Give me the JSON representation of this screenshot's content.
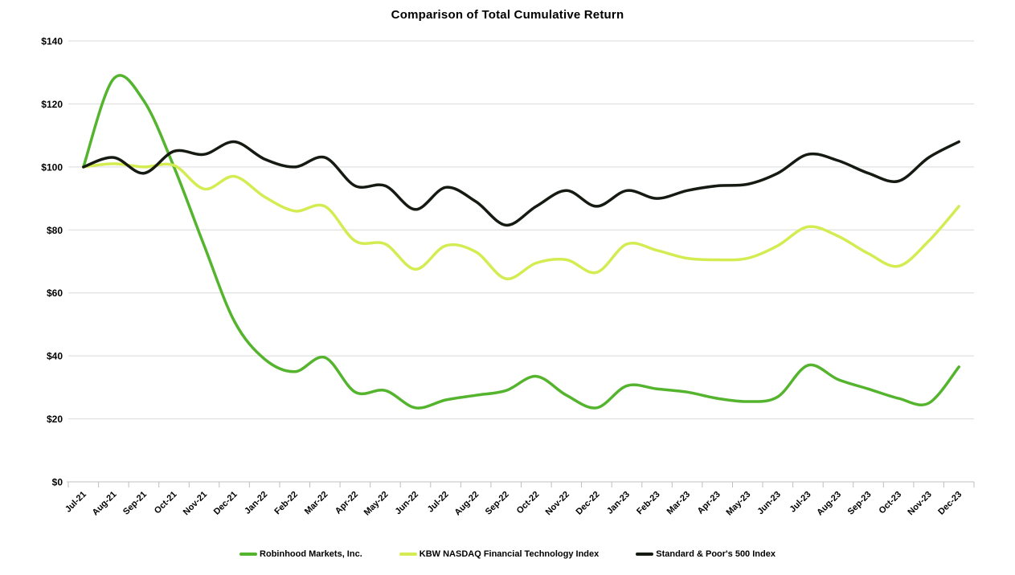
{
  "chart_data": {
    "type": "line",
    "title": "Comparison of Total Cumulative Return",
    "xlabel": "",
    "ylabel": "",
    "ylim": [
      0,
      140
    ],
    "y_tick_step": 20,
    "y_tick_prefix": "$",
    "grid": true,
    "legend_position": "bottom",
    "grid_color": "#d9d9d9",
    "axis_color": "#bfbfbf",
    "text_color": "#000000",
    "categories": [
      "Jul-21",
      "Aug-21",
      "Sep-21",
      "Oct-21",
      "Nov-21",
      "Dec-21",
      "Jan-22",
      "Feb-22",
      "Mar-22",
      "Apr-22",
      "May-22",
      "Jun-22",
      "Jul-22",
      "Aug-22",
      "Sep-22",
      "Oct-22",
      "Nov-22",
      "Dec-22",
      "Jan-23",
      "Feb-23",
      "Mar-23",
      "Apr-23",
      "May-23",
      "Jun-23",
      "Jul-23",
      "Aug-23",
      "Sep-23",
      "Oct-23",
      "Nov-23",
      "Dec-23"
    ],
    "series": [
      {
        "name": "Robinhood Markets, Inc.",
        "color": "#54b42e",
        "values": [
          100,
          128,
          121,
          100,
          75,
          51,
          39,
          35,
          39.5,
          28.5,
          29,
          23.5,
          26,
          27.5,
          29,
          33.5,
          27.5,
          23.5,
          30.5,
          29.5,
          28.5,
          26.5,
          25.5,
          27,
          37,
          32.5,
          29.5,
          26.5,
          25,
          36.5
        ]
      },
      {
        "name": "KBW NASDAQ Financial Technology Index",
        "color": "#d4ec52",
        "values": [
          100,
          101,
          100,
          100.5,
          93,
          97,
          90.5,
          86,
          87.5,
          76.5,
          75.5,
          67.5,
          75,
          73,
          64.5,
          69.5,
          70.5,
          66.5,
          75.5,
          73.5,
          71,
          70.5,
          71,
          75,
          81,
          78,
          72.5,
          68.5,
          76.5,
          87.5
        ]
      },
      {
        "name": "Standard & Poor's 500 Index",
        "color": "#151a12",
        "values": [
          100,
          103,
          98,
          105,
          104,
          108,
          102.5,
          100,
          103,
          94,
          94,
          86.5,
          93.5,
          89,
          81.5,
          87.5,
          92.5,
          87.5,
          92.5,
          90,
          92.5,
          94,
          94.5,
          98,
          104,
          102,
          98,
          95.5,
          103,
          108
        ]
      }
    ]
  }
}
